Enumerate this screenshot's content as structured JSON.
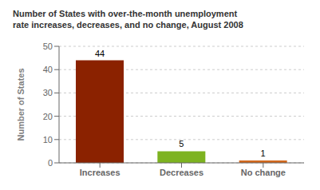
{
  "chart_data": {
    "type": "bar",
    "title": "Number of States with over-the-month unemployment\nrate increases, decreases, and no change, August 2008",
    "categories": [
      "Increases",
      "Decreases",
      "No change"
    ],
    "values": [
      44,
      5,
      1
    ],
    "colors": [
      "#8B2200",
      "#7DB320",
      "#D2691E"
    ],
    "ylabel": "Number of States",
    "ylim": [
      0,
      50
    ],
    "yticks": [
      0,
      10,
      20,
      30,
      40,
      50
    ],
    "grid": true,
    "data_labels": true
  }
}
